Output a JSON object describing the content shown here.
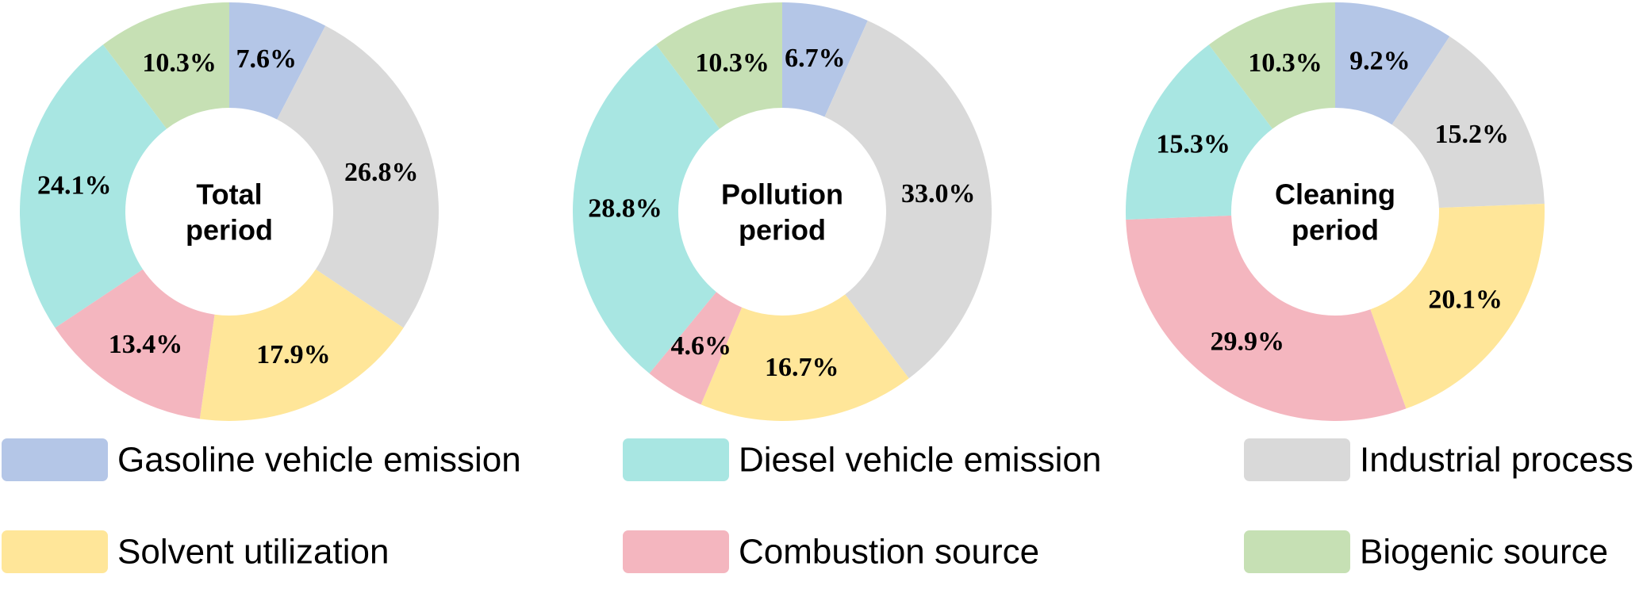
{
  "chart_data": [
    {
      "type": "pie",
      "center_label": [
        "Total",
        "period"
      ],
      "categories": [
        "Gasoline vehicle emission",
        "Industrial process",
        "Solvent utilization",
        "Combustion source",
        "Diesel vehicle emission",
        "Biogenic source"
      ],
      "values": [
        7.6,
        26.8,
        17.9,
        13.4,
        24.1,
        10.3
      ],
      "labels": [
        "7.6%",
        "26.8%",
        "17.9%",
        "13.4%",
        "24.1%",
        "10.3%"
      ]
    },
    {
      "type": "pie",
      "center_label": [
        "Pollution",
        "period"
      ],
      "categories": [
        "Gasoline vehicle emission",
        "Industrial process",
        "Solvent utilization",
        "Combustion source",
        "Diesel vehicle emission",
        "Biogenic source"
      ],
      "values": [
        6.7,
        33.0,
        16.7,
        4.6,
        28.8,
        10.3
      ],
      "labels": [
        "6.7%",
        "33.0%",
        "16.7%",
        "4.6%",
        "28.8%",
        "10.3%"
      ]
    },
    {
      "type": "pie",
      "center_label": [
        "Cleaning",
        "period"
      ],
      "categories": [
        "Gasoline vehicle emission",
        "Industrial process",
        "Solvent utilization",
        "Combustion source",
        "Diesel vehicle emission",
        "Biogenic source"
      ],
      "values": [
        9.2,
        15.2,
        20.1,
        29.9,
        15.3,
        10.3
      ],
      "labels": [
        "9.2%",
        "15.2%",
        "20.1%",
        "29.9%",
        "15.3%",
        "10.3%"
      ]
    }
  ],
  "colors": {
    "Gasoline vehicle emission": "#b4c6e7",
    "Industrial process": "#d9d9d9",
    "Solvent utilization": "#ffe699",
    "Combustion source": "#f4b6bf",
    "Diesel vehicle emission": "#a8e6e2",
    "Biogenic source": "#c6e0b4"
  },
  "legend": [
    "Gasoline vehicle emission",
    "Diesel vehicle emission",
    "Industrial process",
    "Solvent utilization",
    "Combustion source",
    "Biogenic source"
  ]
}
